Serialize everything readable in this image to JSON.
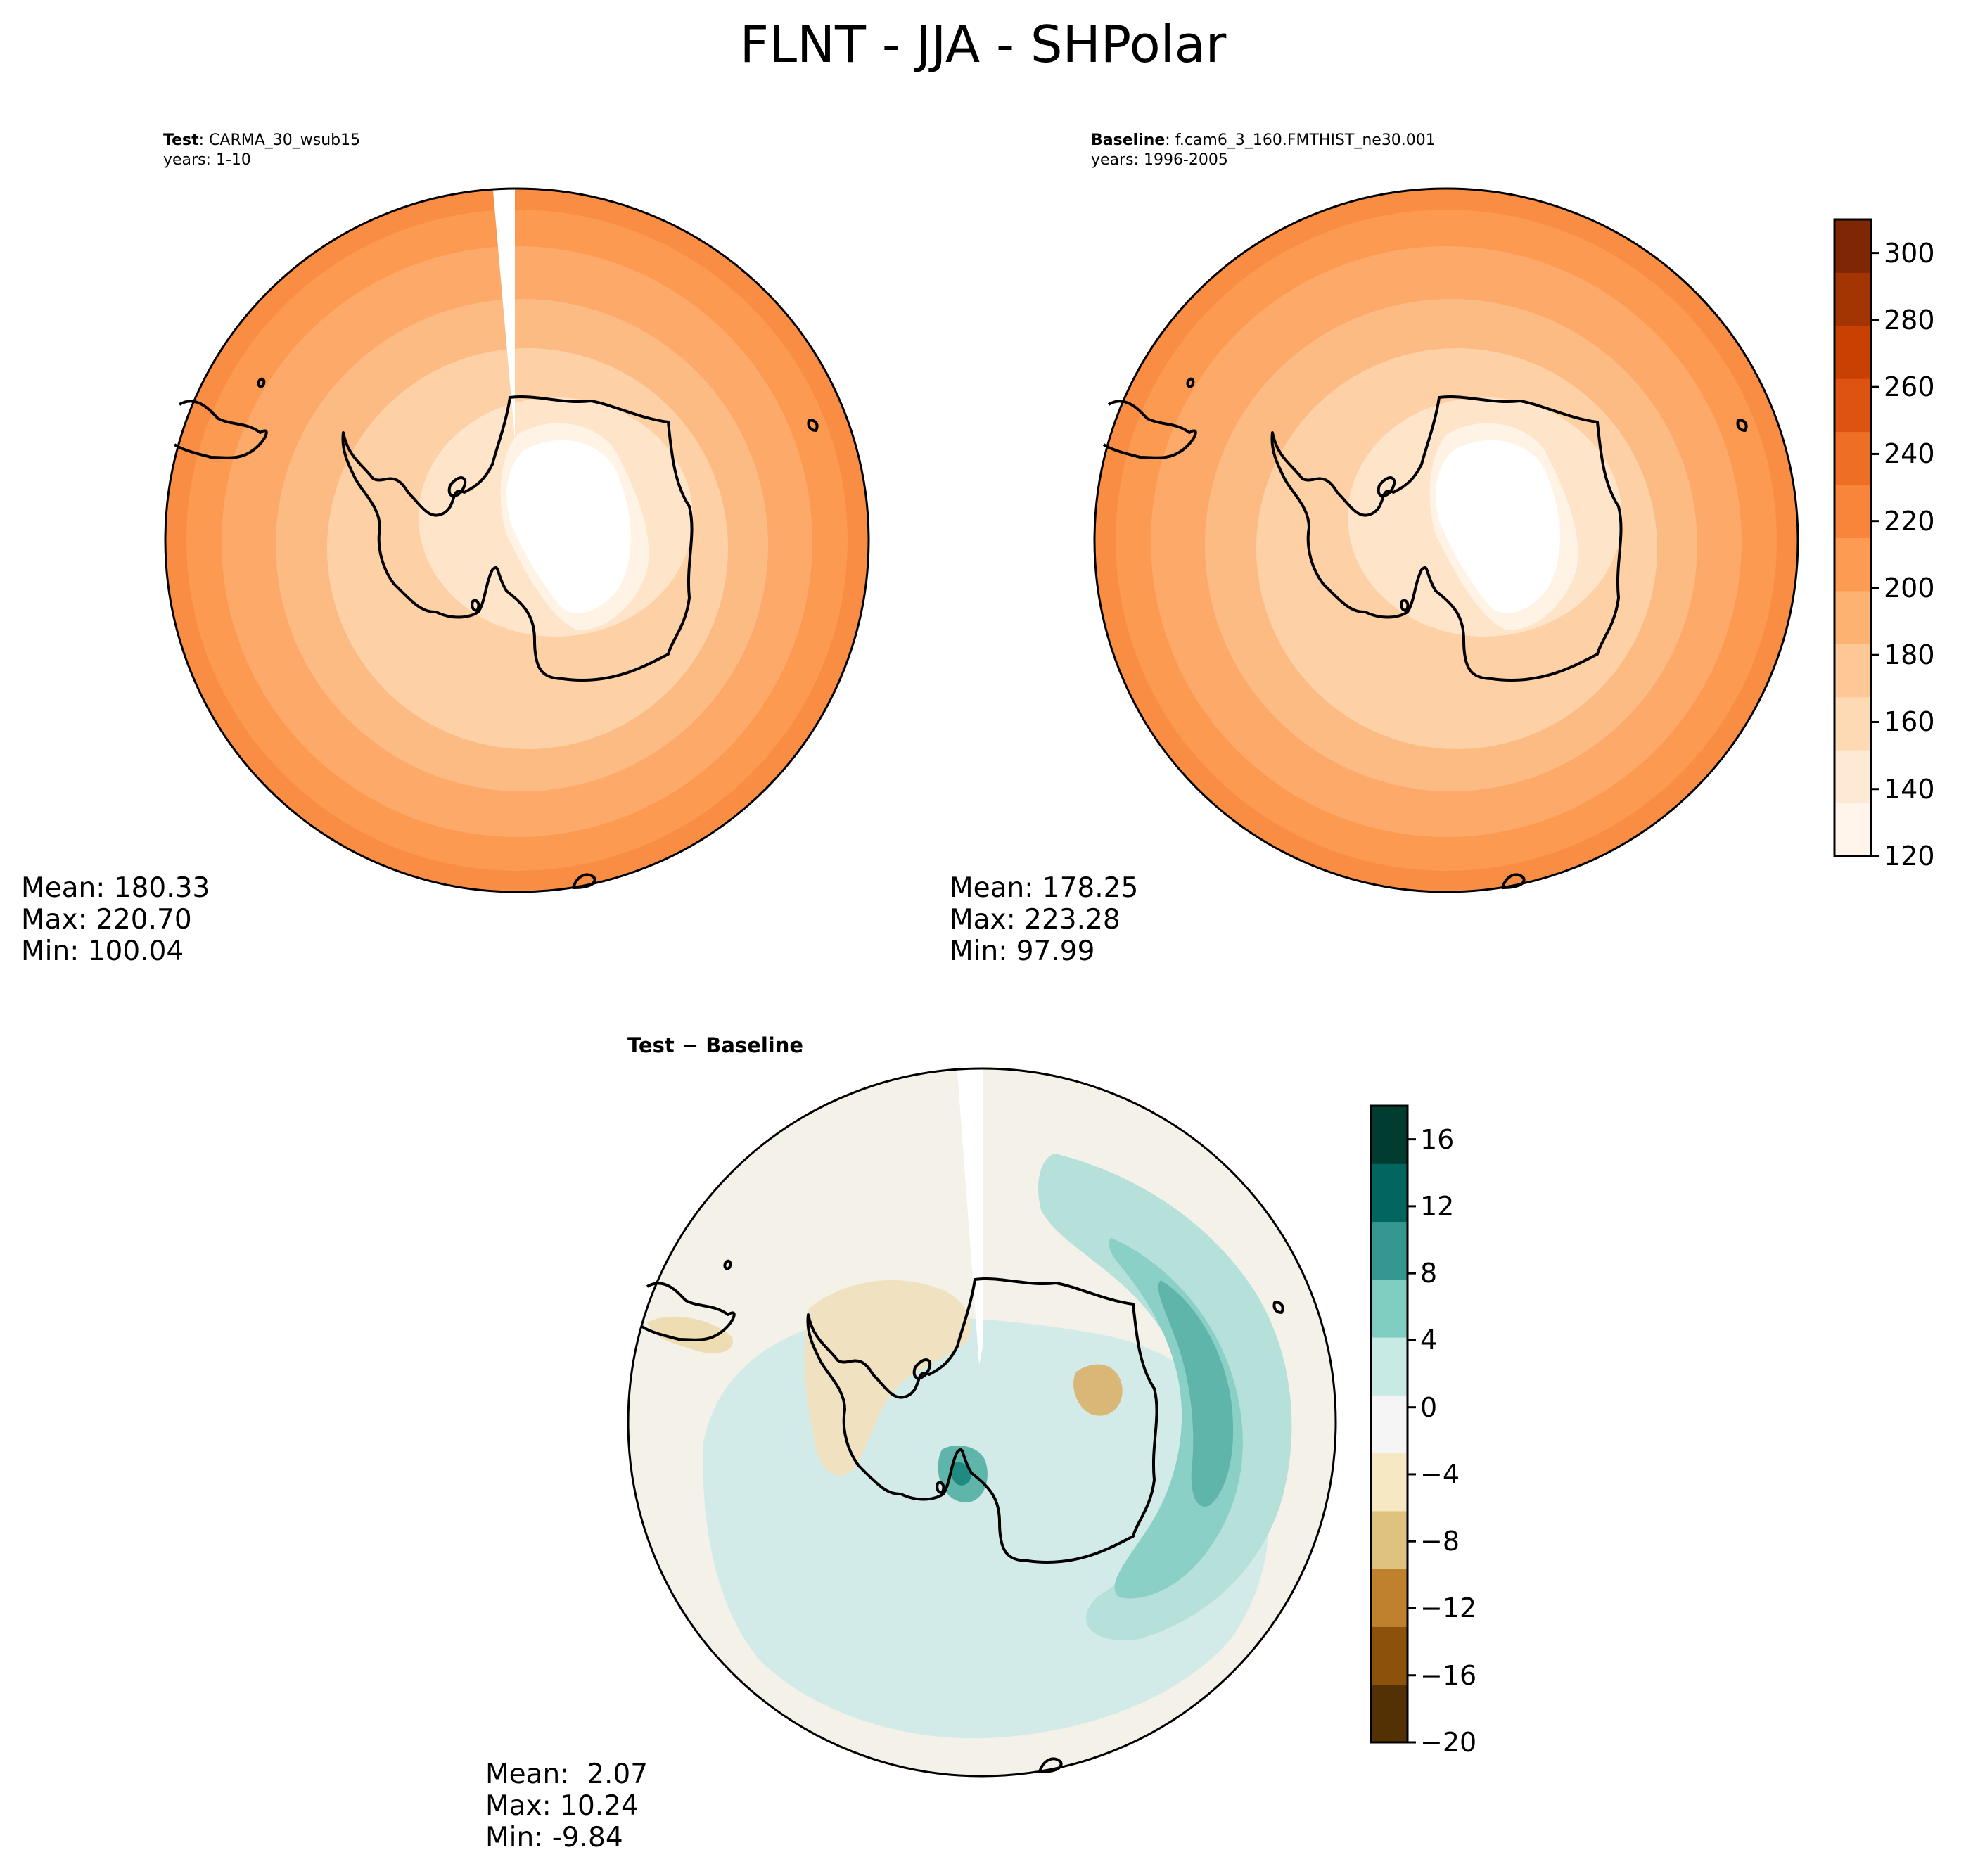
{
  "figure": {
    "title": "FLNT - JJA - SHPolar"
  },
  "panels": {
    "test": {
      "label": "Test",
      "name": ": CARMA_30_wsub15",
      "years": "years: 1-10",
      "mean": "Mean: 180.33",
      "max": "Max: 220.70",
      "min": "Min: 100.04"
    },
    "baseline": {
      "label": "Baseline",
      "name": ": f.cam6_3_160.FMTHIST_ne30.001",
      "years": "years: 1996-2005",
      "mean": "Mean: 178.25",
      "max": "Max: 223.28",
      "min": "Min: 97.99"
    },
    "difference": {
      "label": "Test − Baseline",
      "mean": "Mean:  2.07",
      "max": "Max: 10.24",
      "min": "Min: -9.84"
    }
  },
  "colorbars": {
    "main": {
      "colormap": "Oranges",
      "min": 120,
      "max": 310,
      "ticks": [
        "120",
        "140",
        "160",
        "180",
        "200",
        "220",
        "240",
        "260",
        "280",
        "300"
      ],
      "colors": [
        "#fff5eb",
        "#fee9d4",
        "#fdd9b4",
        "#fdc895",
        "#fdb272",
        "#fd9b53",
        "#f8853a",
        "#ee6e24",
        "#de5311",
        "#c84103",
        "#a33503",
        "#7f2704"
      ]
    },
    "diff": {
      "colormap": "BrBG",
      "min": -20,
      "max": 18,
      "ticks": [
        "−20",
        "−16",
        "−12",
        "−8",
        "−4",
        "0",
        "4",
        "8",
        "12",
        "16"
      ],
      "colors": [
        "#543005",
        "#8c510a",
        "#bf812d",
        "#dfc27d",
        "#f6e8c3",
        "#f5f5f5",
        "#c7eae5",
        "#80cdc1",
        "#35978f",
        "#01665e",
        "#003c30"
      ]
    }
  },
  "map_colors": {
    "coast": "#000000",
    "frame": "#000000"
  }
}
